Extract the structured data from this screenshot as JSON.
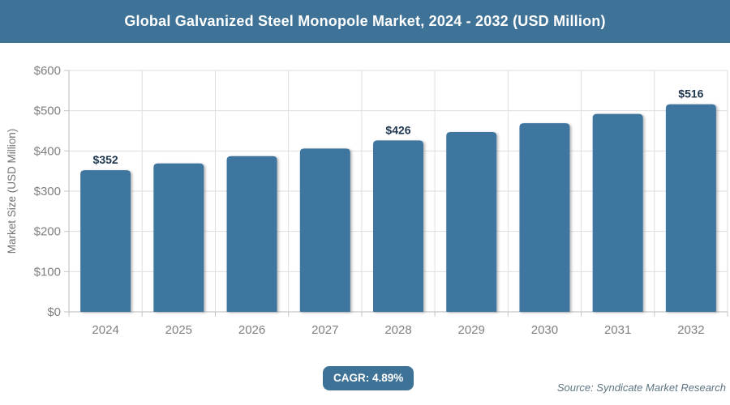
{
  "header": {
    "title": "Global Galvanized Steel Monopole Market, 2024 - 2032 (USD Million)",
    "background_color": "#3E7296",
    "text_color": "#FFFFFF"
  },
  "chart_data": {
    "type": "bar",
    "title": "Global Galvanized Steel Monopole Market, 2024 - 2032 (USD Million)",
    "categories": [
      "2024",
      "2025",
      "2026",
      "2027",
      "2028",
      "2029",
      "2030",
      "2031",
      "2032"
    ],
    "values": [
      352,
      369,
      387,
      406,
      426,
      447,
      469,
      492,
      516
    ],
    "value_labels": {
      "2024": "$352",
      "2028": "$426",
      "2032": "$516"
    },
    "xlabel": "",
    "ylabel": "Market Size (USD Million)",
    "ylim": [
      0,
      600
    ],
    "ytick_step": 100,
    "ytick_prefix": "$",
    "grid": true,
    "legend_position": "none",
    "bar_color": "#3F76A0",
    "value_label_color": "#203750",
    "axis_text_color": "#7F7F7F",
    "axis_line_color": "#C6C6C6",
    "grid_color": "#DEDEDE"
  },
  "footer": {
    "cagr_label": "CAGR: 4.89%",
    "badge_color": "#3E7296",
    "source": "Source: Syndicate Market Research"
  }
}
